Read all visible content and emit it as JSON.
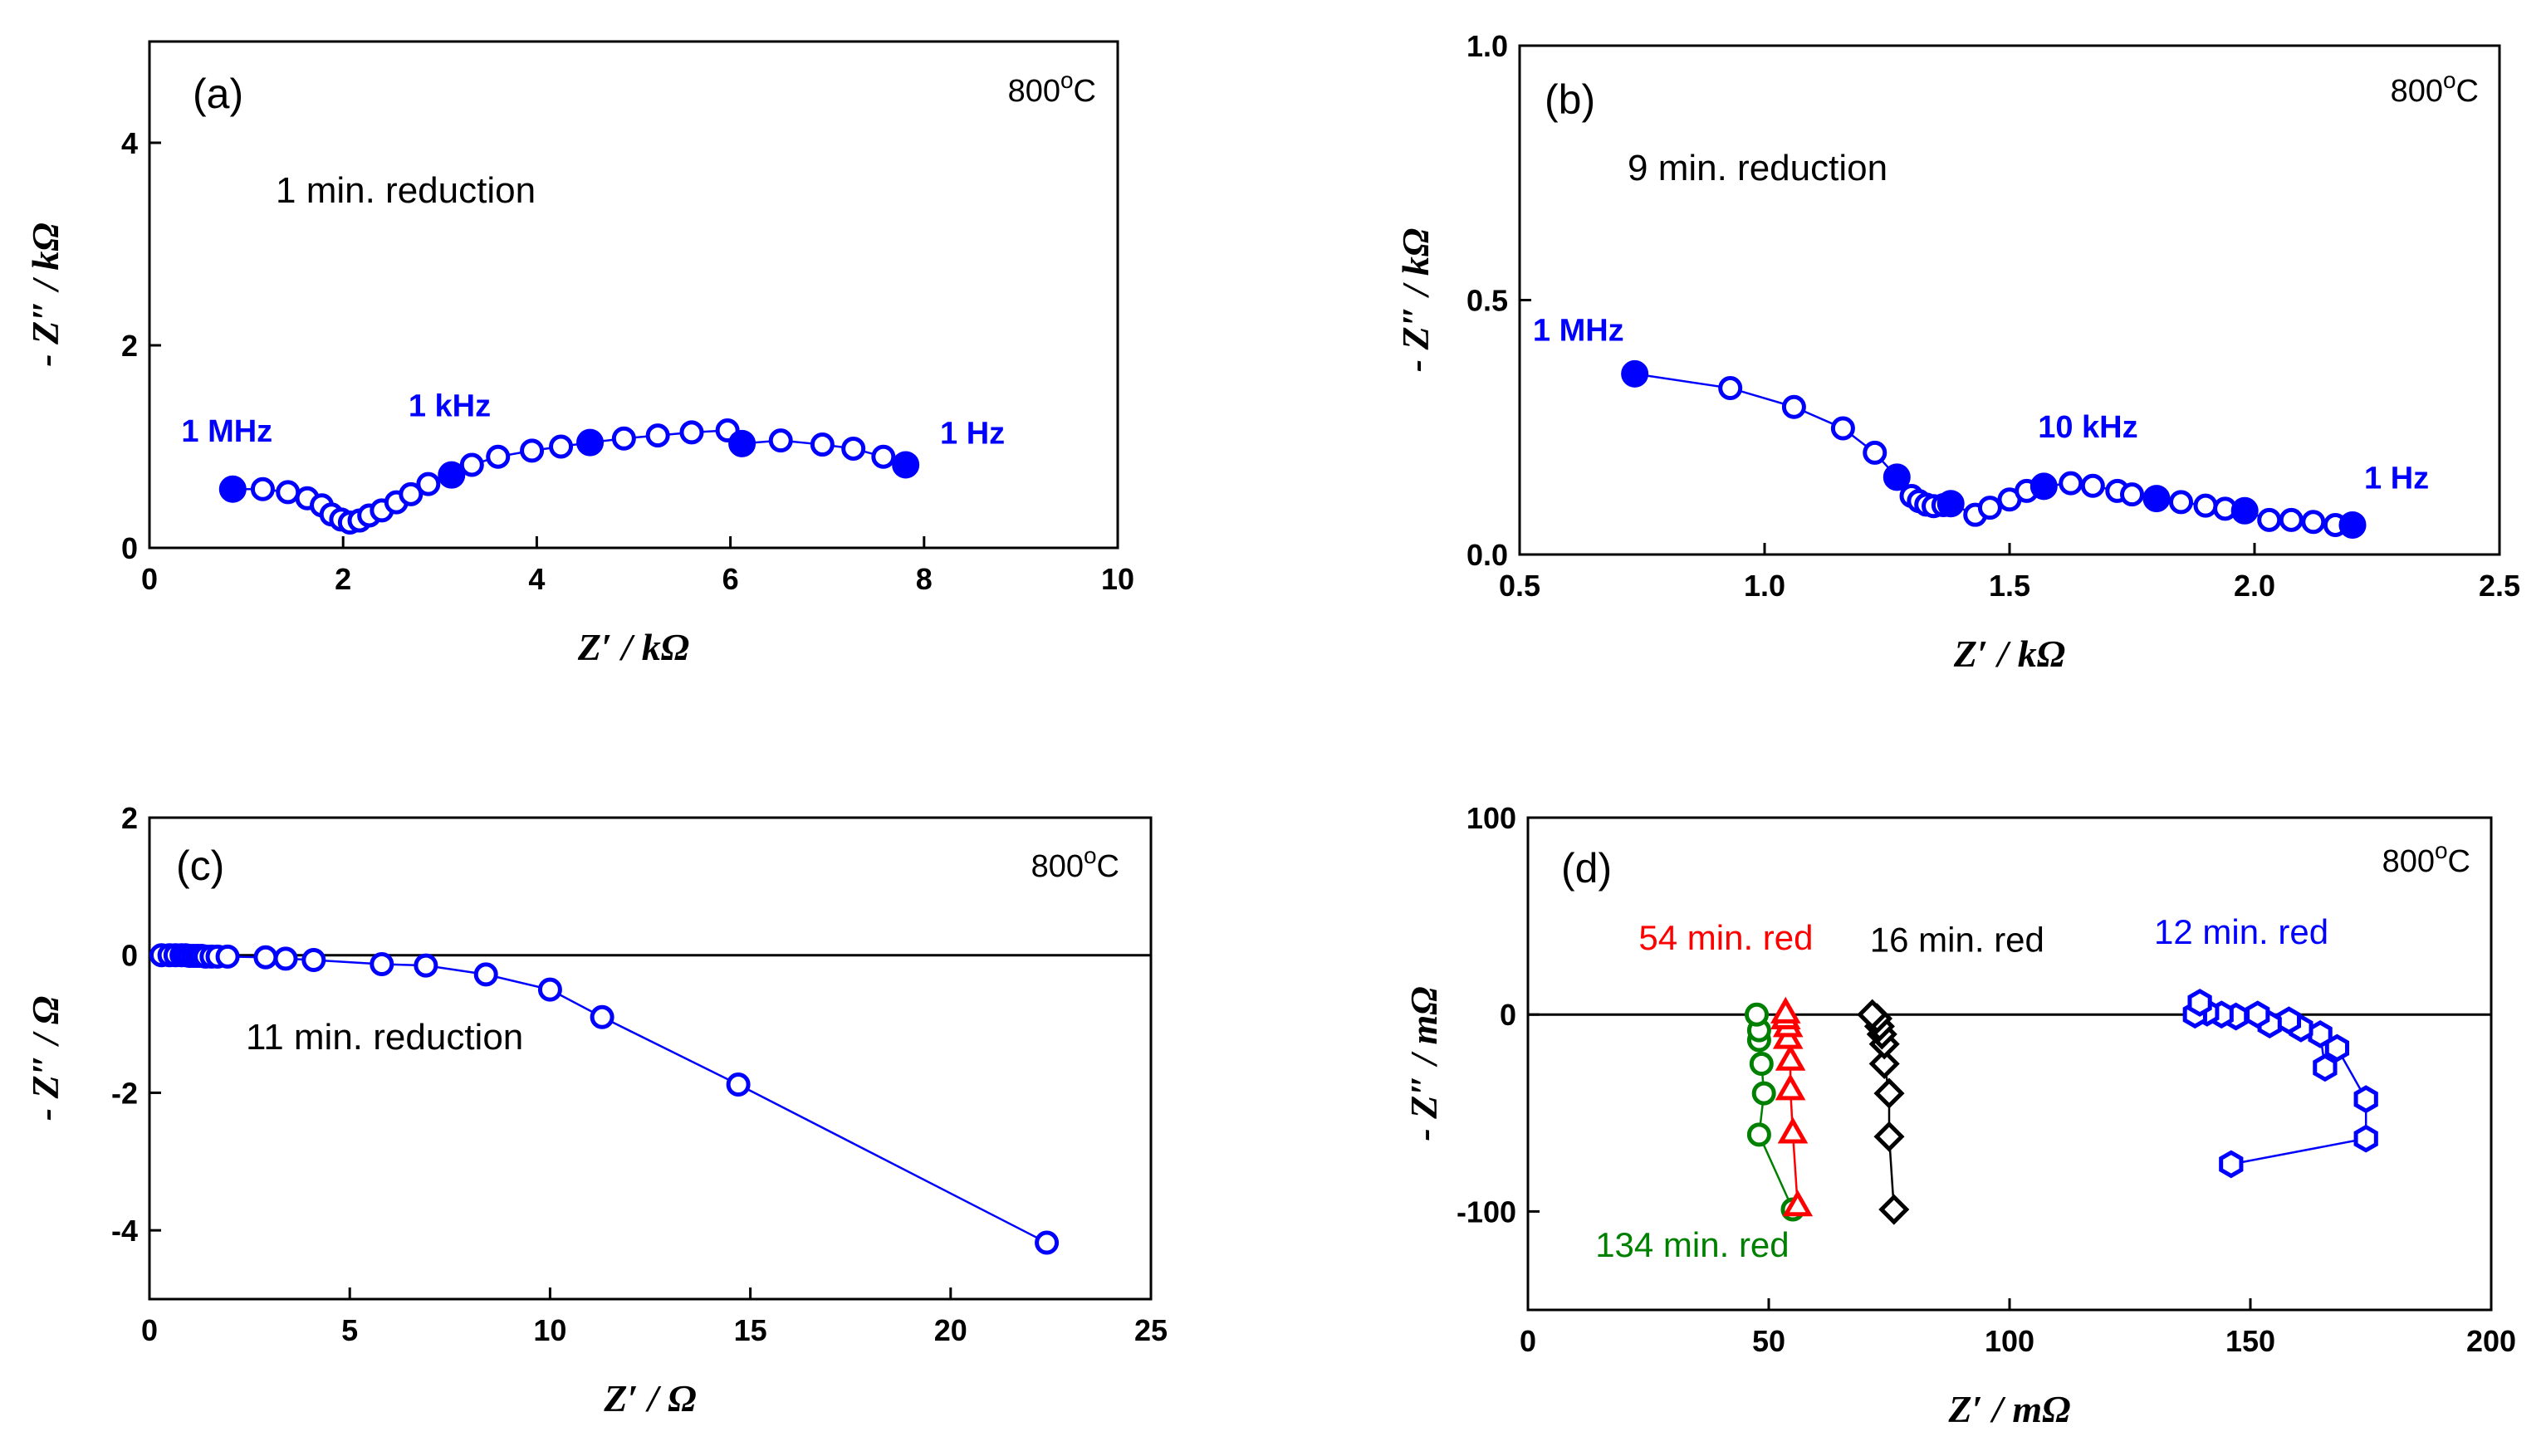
{
  "chart_data": [
    {
      "type": "scatter",
      "panel_label": "(a)",
      "temperature": "800°C",
      "annotation": "1 min. reduction",
      "xlabel": "Z′ / kΩ",
      "ylabel": "- Z″ / kΩ",
      "xlim": [
        0,
        10
      ],
      "ylim": [
        0,
        5
      ],
      "xticks": [
        0,
        2,
        4,
        6,
        8,
        10
      ],
      "yticks": [
        0,
        2,
        4
      ],
      "xtick_labels": [
        "0",
        "2",
        "4",
        "6",
        "8",
        "10"
      ],
      "ytick_labels": [
        "0",
        "2",
        "4"
      ],
      "zero_line": false,
      "series": [
        {
          "name": "1 min. reduction",
          "color": "#0000ff",
          "marker": "circle",
          "x": [
            0.86,
            1.17,
            1.43,
            1.63,
            1.78,
            1.88,
            1.98,
            2.07,
            2.17,
            2.27,
            2.4,
            2.55,
            2.7,
            2.88,
            3.12,
            3.33,
            3.6,
            3.95,
            4.25,
            4.55,
            4.9,
            5.25,
            5.6,
            5.97,
            6.12,
            6.52,
            6.95,
            7.27,
            7.58,
            7.81
          ],
          "y": [
            0.58,
            0.58,
            0.55,
            0.49,
            0.42,
            0.33,
            0.28,
            0.25,
            0.27,
            0.32,
            0.37,
            0.45,
            0.53,
            0.63,
            0.72,
            0.82,
            0.9,
            0.96,
            1.0,
            1.04,
            1.08,
            1.11,
            1.14,
            1.16,
            1.03,
            1.06,
            1.02,
            0.98,
            0.9,
            0.82
          ],
          "filled": [
            0,
            14,
            19,
            24,
            29
          ]
        }
      ],
      "freq_labels": [
        {
          "text": "1 MHz",
          "x": 0.8,
          "y": 1.05
        },
        {
          "text": "1 kHz",
          "x": 3.1,
          "y": 1.3
        },
        {
          "text": "1 Hz",
          "x": 8.5,
          "y": 1.03
        }
      ]
    },
    {
      "type": "scatter",
      "panel_label": "(b)",
      "temperature": "800°C",
      "annotation": "9 min. reduction",
      "xlabel": "Z′ / kΩ",
      "ylabel": "- Z″ / kΩ",
      "xlim": [
        0.5,
        2.5
      ],
      "ylim": [
        0,
        1.0
      ],
      "xticks": [
        0.5,
        1.0,
        1.5,
        2.0,
        2.5
      ],
      "yticks": [
        0.0,
        0.5,
        1.0
      ],
      "xtick_labels": [
        "0.5",
        "1.0",
        "1.5",
        "2.0",
        "2.5"
      ],
      "ytick_labels": [
        "0.0",
        "0.5",
        "1.0"
      ],
      "zero_line": false,
      "series": [
        {
          "name": "9 min. reduction",
          "color": "#0000ff",
          "marker": "circle",
          "x": [
            0.735,
            0.93,
            1.06,
            1.16,
            1.225,
            1.27,
            1.3,
            1.315,
            1.33,
            1.345,
            1.365,
            1.38,
            1.43,
            1.46,
            1.5,
            1.535,
            1.57,
            1.625,
            1.67,
            1.72,
            1.75,
            1.8,
            1.85,
            1.9,
            1.94,
            1.98,
            2.03,
            2.075,
            2.12,
            2.165,
            2.2
          ],
          "y": [
            0.355,
            0.327,
            0.29,
            0.248,
            0.2,
            0.152,
            0.115,
            0.105,
            0.098,
            0.095,
            0.097,
            0.1,
            0.078,
            0.092,
            0.108,
            0.125,
            0.134,
            0.14,
            0.135,
            0.125,
            0.118,
            0.11,
            0.103,
            0.096,
            0.09,
            0.086,
            0.068,
            0.068,
            0.064,
            0.058,
            0.058
          ],
          "filled": [
            0,
            5,
            11,
            16,
            21,
            25,
            30
          ]
        }
      ],
      "freq_labels": [
        {
          "text": "1 MHz",
          "x": 0.62,
          "y": 0.42
        },
        {
          "text": "10 kHz",
          "x": 1.66,
          "y": 0.23
        },
        {
          "text": "1 Hz",
          "x": 2.29,
          "y": 0.13
        }
      ]
    },
    {
      "type": "line",
      "panel_label": "(c)",
      "temperature": "800°C",
      "annotation": "11 min. reduction",
      "xlabel": "Z′ / Ω",
      "ylabel": "- Z″ / Ω",
      "xlim": [
        0,
        25
      ],
      "ylim": [
        -5,
        2
      ],
      "xticks": [
        0,
        5,
        10,
        15,
        20,
        25
      ],
      "yticks": [
        -4,
        -2,
        0,
        2
      ],
      "xtick_labels": [
        "0",
        "5",
        "10",
        "15",
        "20",
        "25"
      ],
      "ytick_labels": [
        "-4",
        "-2",
        "0",
        "2"
      ],
      "zero_line": true,
      "series": [
        {
          "name": "11 min. reduction",
          "color": "#0000ff",
          "marker": "circle",
          "x": [
            0.3,
            0.5,
            0.65,
            0.8,
            0.9,
            1.0,
            1.1,
            1.2,
            1.3,
            1.4,
            1.55,
            1.7,
            1.95,
            2.9,
            3.4,
            4.1,
            5.8,
            6.9,
            8.4,
            10.0,
            11.3,
            14.7,
            22.4
          ],
          "y": [
            0.0,
            0.0,
            0.0,
            0.0,
            0.0,
            -0.01,
            -0.01,
            -0.01,
            -0.01,
            -0.02,
            -0.02,
            -0.02,
            -0.02,
            -0.03,
            -0.05,
            -0.07,
            -0.13,
            -0.15,
            -0.28,
            -0.5,
            -0.9,
            -1.88,
            -4.18
          ],
          "filled": []
        }
      ],
      "freq_labels": []
    },
    {
      "type": "line",
      "panel_label": "(d)",
      "temperature": "800°C",
      "annotation": "",
      "xlabel": "Z′ / mΩ",
      "ylabel": "- Z″ / mΩ",
      "xlim": [
        0,
        200
      ],
      "ylim": [
        -150,
        100
      ],
      "xticks": [
        0,
        50,
        100,
        150,
        200
      ],
      "yticks": [
        -100,
        0,
        100
      ],
      "xtick_labels": [
        "0",
        "50",
        "100",
        "150",
        "200"
      ],
      "ytick_labels": [
        "-100",
        "0",
        "100"
      ],
      "zero_line": true,
      "series": [
        {
          "name": "134 min. red",
          "color": "#008000",
          "marker": "circle",
          "x": [
            55.0,
            48.0,
            49.0,
            48.5,
            48.0,
            48.0,
            47.5
          ],
          "y": [
            -99.0,
            -61.0,
            -40.0,
            -25.0,
            -13.0,
            -8.0,
            0.0
          ],
          "filled": []
        },
        {
          "name": "54 min. red",
          "color": "#ff0000",
          "marker": "triangle",
          "x": [
            56.0,
            55.0,
            54.5,
            54.5,
            54.0,
            54.0,
            53.5,
            53.5
          ],
          "y": [
            -97.0,
            -60.0,
            -38.0,
            -23.0,
            -12.0,
            -6.0,
            -2.0,
            1.0
          ],
          "filled": []
        },
        {
          "name": "16 min. red",
          "color": "#000000",
          "marker": "diamond",
          "x": [
            76.0,
            75.0,
            75.0,
            74.0,
            74.0,
            73.5,
            73.0,
            72.5,
            71.5
          ],
          "y": [
            -99.0,
            -62.0,
            -40.0,
            -25.0,
            -15.0,
            -10.0,
            -6.0,
            -2.0,
            0.0
          ],
          "filled": []
        },
        {
          "name": "12 min. red",
          "color": "#0000ff",
          "marker": "hexagon",
          "x": [
            146.0,
            174.0,
            174.0,
            168.0,
            165.5,
            164.5,
            160.5,
            158.0,
            154.0,
            151.5,
            147.0,
            144.0,
            141.0,
            138.5,
            139.5
          ],
          "y": [
            -76.0,
            -63.0,
            -43.0,
            -17.0,
            -27.0,
            -10.0,
            -7.0,
            -3.0,
            -5.0,
            0.0,
            -1.0,
            0.0,
            1.0,
            0.0,
            6.0
          ]
        }
      ],
      "series_labels": [
        {
          "text": "54 min. red",
          "color": "#ff0000",
          "x": 23.0,
          "y": 33.0
        },
        {
          "text": "16 min. red",
          "color": "#000000",
          "x": 71.0,
          "y": 32.0
        },
        {
          "text": "12 min. red",
          "color": "#0000ff",
          "x": 130.0,
          "y": 36.0
        },
        {
          "text": "134 min. red",
          "color": "#008000",
          "x": 14.0,
          "y": -123.0
        }
      ],
      "freq_labels": []
    }
  ]
}
